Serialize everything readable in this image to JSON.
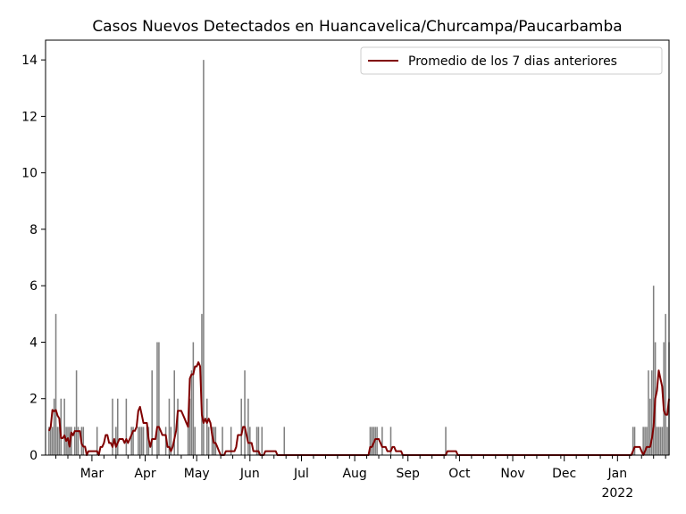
{
  "chart_data": {
    "type": "bar",
    "title": "Casos Nuevos Detectados en Huancavelica/Churcampa/Paucarbamba",
    "xlabel": "",
    "ylabel": "",
    "ylim": [
      0,
      14.7
    ],
    "yticks": [
      0,
      2,
      4,
      6,
      8,
      10,
      12,
      14
    ],
    "xlim": [
      "2021-02-02",
      "2022-01-31"
    ],
    "xticks": [
      {
        "date": "2021-03-01",
        "label": "Mar"
      },
      {
        "date": "2021-04-01",
        "label": "Apr"
      },
      {
        "date": "2021-05-01",
        "label": "May"
      },
      {
        "date": "2021-06-01",
        "label": "Jun"
      },
      {
        "date": "2021-07-01",
        "label": "Jul"
      },
      {
        "date": "2021-08-01",
        "label": "Aug"
      },
      {
        "date": "2021-09-01",
        "label": "Sep"
      },
      {
        "date": "2021-10-01",
        "label": "Oct"
      },
      {
        "date": "2021-11-01",
        "label": "Nov"
      },
      {
        "date": "2021-12-01",
        "label": "Dec"
      },
      {
        "date": "2022-01-01",
        "label": "Jan"
      }
    ],
    "xtick_sublabel": "2022",
    "grid": false,
    "legend_position": "top-right",
    "series": [
      {
        "kind": "bar",
        "color": "#808080",
        "data": [
          [
            "2021-02-04",
            1
          ],
          [
            "2021-02-05",
            1
          ],
          [
            "2021-02-06",
            1
          ],
          [
            "2021-02-07",
            2
          ],
          [
            "2021-02-08",
            5
          ],
          [
            "2021-02-09",
            1
          ],
          [
            "2021-02-10",
            1
          ],
          [
            "2021-02-11",
            2
          ],
          [
            "2021-02-13",
            2
          ],
          [
            "2021-02-14",
            1
          ],
          [
            "2021-02-15",
            1
          ],
          [
            "2021-02-16",
            1
          ],
          [
            "2021-02-17",
            1
          ],
          [
            "2021-02-19",
            1
          ],
          [
            "2021-02-20",
            3
          ],
          [
            "2021-02-21",
            1
          ],
          [
            "2021-02-23",
            1
          ],
          [
            "2021-02-24",
            1
          ],
          [
            "2021-03-04",
            1
          ],
          [
            "2021-03-13",
            2
          ],
          [
            "2021-03-15",
            1
          ],
          [
            "2021-03-16",
            2
          ],
          [
            "2021-03-21",
            2
          ],
          [
            "2021-03-24",
            1
          ],
          [
            "2021-03-25",
            1
          ],
          [
            "2021-03-28",
            1
          ],
          [
            "2021-03-29",
            1
          ],
          [
            "2021-03-30",
            1
          ],
          [
            "2021-03-31",
            1
          ],
          [
            "2021-04-02",
            1
          ],
          [
            "2021-04-03",
            1
          ],
          [
            "2021-04-05",
            3
          ],
          [
            "2021-04-08",
            4
          ],
          [
            "2021-04-09",
            4
          ],
          [
            "2021-04-13",
            1
          ],
          [
            "2021-04-15",
            2
          ],
          [
            "2021-04-16",
            1
          ],
          [
            "2021-04-18",
            3
          ],
          [
            "2021-04-20",
            2
          ],
          [
            "2021-04-26",
            1
          ],
          [
            "2021-04-27",
            2
          ],
          [
            "2021-04-28",
            3
          ],
          [
            "2021-04-29",
            4
          ],
          [
            "2021-04-30",
            1
          ],
          [
            "2021-05-04",
            5
          ],
          [
            "2021-05-05",
            14
          ],
          [
            "2021-05-07",
            2
          ],
          [
            "2021-05-08",
            1
          ],
          [
            "2021-05-10",
            1
          ],
          [
            "2021-05-11",
            1
          ],
          [
            "2021-05-12",
            1
          ],
          [
            "2021-05-16",
            1
          ],
          [
            "2021-05-21",
            1
          ],
          [
            "2021-05-27",
            2
          ],
          [
            "2021-05-29",
            3
          ],
          [
            "2021-05-31",
            2
          ],
          [
            "2021-06-01",
            1
          ],
          [
            "2021-06-05",
            1
          ],
          [
            "2021-06-06",
            1
          ],
          [
            "2021-06-08",
            1
          ],
          [
            "2021-06-21",
            1
          ],
          [
            "2021-08-10",
            1
          ],
          [
            "2021-08-11",
            1
          ],
          [
            "2021-08-12",
            1
          ],
          [
            "2021-08-13",
            1
          ],
          [
            "2021-08-14",
            1
          ],
          [
            "2021-08-17",
            1
          ],
          [
            "2021-08-22",
            1
          ],
          [
            "2021-09-23",
            1
          ],
          [
            "2022-01-10",
            1
          ],
          [
            "2022-01-11",
            1
          ],
          [
            "2022-01-16",
            1
          ],
          [
            "2022-01-17",
            1
          ],
          [
            "2022-01-18",
            1
          ],
          [
            "2022-01-19",
            3
          ],
          [
            "2022-01-20",
            2
          ],
          [
            "2022-01-21",
            3
          ],
          [
            "2022-01-22",
            6
          ],
          [
            "2022-01-23",
            4
          ],
          [
            "2022-01-24",
            1
          ],
          [
            "2022-01-25",
            1
          ],
          [
            "2022-01-26",
            1
          ],
          [
            "2022-01-27",
            1
          ],
          [
            "2022-01-28",
            4
          ],
          [
            "2022-01-29",
            5
          ],
          [
            "2022-01-30",
            1
          ],
          [
            "2022-01-31",
            4
          ]
        ]
      },
      {
        "kind": "line",
        "name": "Promedio de los 7 dias anteriores",
        "color": "#800000",
        "data": [
          [
            "2021-02-04",
            0.86
          ],
          [
            "2021-02-05",
            1.0
          ],
          [
            "2021-02-06",
            1.6
          ],
          [
            "2021-02-07",
            1.55
          ],
          [
            "2021-02-08",
            1.6
          ],
          [
            "2021-02-09",
            1.4
          ],
          [
            "2021-02-10",
            1.3
          ],
          [
            "2021-02-11",
            0.6
          ],
          [
            "2021-02-12",
            0.6
          ],
          [
            "2021-02-13",
            0.7
          ],
          [
            "2021-02-14",
            0.5
          ],
          [
            "2021-02-15",
            0.6
          ],
          [
            "2021-02-16",
            0.3
          ],
          [
            "2021-02-17",
            0.8
          ],
          [
            "2021-02-18",
            0.7
          ],
          [
            "2021-02-19",
            0.85
          ],
          [
            "2021-02-20",
            0.85
          ],
          [
            "2021-02-21",
            0.85
          ],
          [
            "2021-02-22",
            0.85
          ],
          [
            "2021-02-23",
            0.4
          ],
          [
            "2021-02-24",
            0.3
          ],
          [
            "2021-02-25",
            0.3
          ],
          [
            "2021-02-26",
            0.0
          ],
          [
            "2021-02-27",
            0.14
          ],
          [
            "2021-02-28",
            0.14
          ],
          [
            "2021-03-01",
            0.14
          ],
          [
            "2021-03-02",
            0.14
          ],
          [
            "2021-03-03",
            0.14
          ],
          [
            "2021-03-04",
            0.14
          ],
          [
            "2021-03-05",
            0.0
          ],
          [
            "2021-03-06",
            0.29
          ],
          [
            "2021-03-07",
            0.29
          ],
          [
            "2021-03-08",
            0.43
          ],
          [
            "2021-03-09",
            0.71
          ],
          [
            "2021-03-10",
            0.71
          ],
          [
            "2021-03-11",
            0.43
          ],
          [
            "2021-03-12",
            0.43
          ],
          [
            "2021-03-13",
            0.29
          ],
          [
            "2021-03-14",
            0.57
          ],
          [
            "2021-03-15",
            0.29
          ],
          [
            "2021-03-16",
            0.43
          ],
          [
            "2021-03-17",
            0.57
          ],
          [
            "2021-03-18",
            0.57
          ],
          [
            "2021-03-19",
            0.57
          ],
          [
            "2021-03-20",
            0.43
          ],
          [
            "2021-03-21",
            0.57
          ],
          [
            "2021-03-22",
            0.43
          ],
          [
            "2021-03-23",
            0.57
          ],
          [
            "2021-03-24",
            0.71
          ],
          [
            "2021-03-25",
            0.86
          ],
          [
            "2021-03-26",
            0.86
          ],
          [
            "2021-03-27",
            1.0
          ],
          [
            "2021-03-28",
            1.57
          ],
          [
            "2021-03-29",
            1.71
          ],
          [
            "2021-03-30",
            1.43
          ],
          [
            "2021-03-31",
            1.14
          ],
          [
            "2021-04-01",
            1.14
          ],
          [
            "2021-04-02",
            1.14
          ],
          [
            "2021-04-03",
            0.57
          ],
          [
            "2021-04-04",
            0.29
          ],
          [
            "2021-04-05",
            0.57
          ],
          [
            "2021-04-06",
            0.57
          ],
          [
            "2021-04-07",
            0.57
          ],
          [
            "2021-04-08",
            1.0
          ],
          [
            "2021-04-09",
            1.0
          ],
          [
            "2021-04-10",
            0.86
          ],
          [
            "2021-04-11",
            0.71
          ],
          [
            "2021-04-12",
            0.71
          ],
          [
            "2021-04-13",
            0.71
          ],
          [
            "2021-04-14",
            0.29
          ],
          [
            "2021-04-15",
            0.29
          ],
          [
            "2021-04-16",
            0.14
          ],
          [
            "2021-04-17",
            0.29
          ],
          [
            "2021-04-18",
            0.57
          ],
          [
            "2021-04-19",
            0.86
          ],
          [
            "2021-04-20",
            1.57
          ],
          [
            "2021-04-21",
            1.57
          ],
          [
            "2021-04-22",
            1.57
          ],
          [
            "2021-04-23",
            1.43
          ],
          [
            "2021-04-24",
            1.29
          ],
          [
            "2021-04-25",
            1.14
          ],
          [
            "2021-04-26",
            1.0
          ],
          [
            "2021-04-27",
            2.71
          ],
          [
            "2021-04-28",
            2.86
          ],
          [
            "2021-04-29",
            2.86
          ],
          [
            "2021-04-30",
            3.14
          ],
          [
            "2021-05-01",
            3.14
          ],
          [
            "2021-05-02",
            3.29
          ],
          [
            "2021-05-03",
            3.14
          ],
          [
            "2021-05-04",
            1.43
          ],
          [
            "2021-05-05",
            1.14
          ],
          [
            "2021-05-06",
            1.29
          ],
          [
            "2021-05-07",
            1.14
          ],
          [
            "2021-05-08",
            1.29
          ],
          [
            "2021-05-09",
            1.14
          ],
          [
            "2021-05-10",
            0.71
          ],
          [
            "2021-05-11",
            0.43
          ],
          [
            "2021-05-12",
            0.43
          ],
          [
            "2021-05-13",
            0.29
          ],
          [
            "2021-05-14",
            0.14
          ],
          [
            "2021-05-15",
            0.0
          ],
          [
            "2021-05-16",
            0.0
          ],
          [
            "2021-05-17",
            0.0
          ],
          [
            "2021-05-18",
            0.14
          ],
          [
            "2021-05-19",
            0.14
          ],
          [
            "2021-05-20",
            0.14
          ],
          [
            "2021-05-21",
            0.14
          ],
          [
            "2021-05-22",
            0.14
          ],
          [
            "2021-05-23",
            0.14
          ],
          [
            "2021-05-24",
            0.29
          ],
          [
            "2021-05-25",
            0.71
          ],
          [
            "2021-05-26",
            0.71
          ],
          [
            "2021-05-27",
            0.71
          ],
          [
            "2021-05-28",
            1.0
          ],
          [
            "2021-05-29",
            1.0
          ],
          [
            "2021-05-30",
            0.71
          ],
          [
            "2021-05-31",
            0.43
          ],
          [
            "2021-06-01",
            0.43
          ],
          [
            "2021-06-02",
            0.43
          ],
          [
            "2021-06-03",
            0.14
          ],
          [
            "2021-06-04",
            0.14
          ],
          [
            "2021-06-05",
            0.14
          ],
          [
            "2021-06-06",
            0.14
          ],
          [
            "2021-06-07",
            0.0
          ],
          [
            "2021-06-08",
            0.0
          ],
          [
            "2021-06-09",
            0.0
          ],
          [
            "2021-06-10",
            0.14
          ],
          [
            "2021-06-11",
            0.14
          ],
          [
            "2021-06-12",
            0.14
          ],
          [
            "2021-06-13",
            0.14
          ],
          [
            "2021-06-14",
            0.14
          ],
          [
            "2021-06-15",
            0.14
          ],
          [
            "2021-06-16",
            0.14
          ],
          [
            "2021-06-17",
            0.0
          ],
          [
            "2021-08-09",
            0.0
          ],
          [
            "2021-08-10",
            0.29
          ],
          [
            "2021-08-11",
            0.29
          ],
          [
            "2021-08-12",
            0.43
          ],
          [
            "2021-08-13",
            0.57
          ],
          [
            "2021-08-14",
            0.57
          ],
          [
            "2021-08-15",
            0.57
          ],
          [
            "2021-08-16",
            0.43
          ],
          [
            "2021-08-17",
            0.29
          ],
          [
            "2021-08-18",
            0.29
          ],
          [
            "2021-08-19",
            0.29
          ],
          [
            "2021-08-20",
            0.14
          ],
          [
            "2021-08-21",
            0.14
          ],
          [
            "2021-08-22",
            0.14
          ],
          [
            "2021-08-23",
            0.29
          ],
          [
            "2021-08-24",
            0.29
          ],
          [
            "2021-08-25",
            0.14
          ],
          [
            "2021-08-26",
            0.14
          ],
          [
            "2021-08-27",
            0.14
          ],
          [
            "2021-08-28",
            0.14
          ],
          [
            "2021-08-29",
            0.0
          ],
          [
            "2021-09-23",
            0.0
          ],
          [
            "2021-09-24",
            0.14
          ],
          [
            "2021-09-25",
            0.14
          ],
          [
            "2021-09-26",
            0.14
          ],
          [
            "2021-09-27",
            0.14
          ],
          [
            "2021-09-28",
            0.14
          ],
          [
            "2021-09-29",
            0.14
          ],
          [
            "2021-09-30",
            0.0
          ],
          [
            "2022-01-09",
            0.0
          ],
          [
            "2022-01-10",
            0.14
          ],
          [
            "2022-01-11",
            0.29
          ],
          [
            "2022-01-12",
            0.29
          ],
          [
            "2022-01-13",
            0.29
          ],
          [
            "2022-01-14",
            0.29
          ],
          [
            "2022-01-15",
            0.14
          ],
          [
            "2022-01-16",
            0.0
          ],
          [
            "2022-01-17",
            0.14
          ],
          [
            "2022-01-18",
            0.29
          ],
          [
            "2022-01-19",
            0.29
          ],
          [
            "2022-01-20",
            0.29
          ],
          [
            "2022-01-21",
            0.57
          ],
          [
            "2022-01-22",
            1.0
          ],
          [
            "2022-01-23",
            2.0
          ],
          [
            "2022-01-24",
            2.29
          ],
          [
            "2022-01-25",
            3.0
          ],
          [
            "2022-01-26",
            2.71
          ],
          [
            "2022-01-27",
            2.43
          ],
          [
            "2022-01-28",
            1.57
          ],
          [
            "2022-01-29",
            1.43
          ],
          [
            "2022-01-30",
            1.43
          ],
          [
            "2022-01-31",
            2.0
          ]
        ]
      }
    ]
  }
}
